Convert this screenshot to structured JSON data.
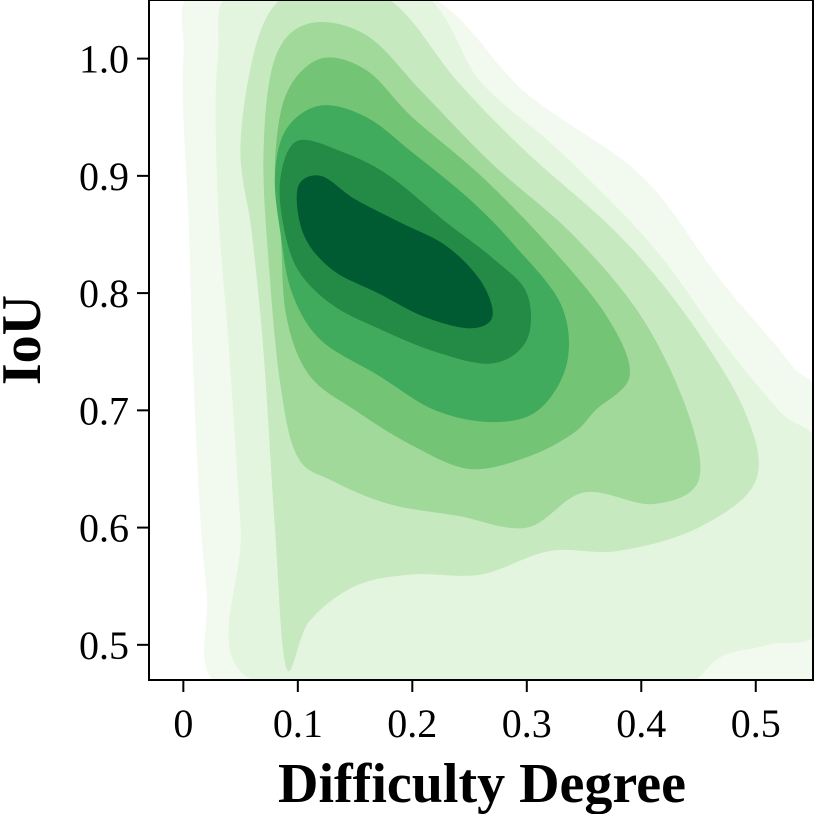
{
  "chart_data": {
    "type": "kde-contour",
    "xlabel": "Difficulty Degree",
    "ylabel": "IoU",
    "xlim": [
      -0.03,
      0.55
    ],
    "ylim": [
      0.47,
      1.05
    ],
    "x_ticks": [
      "0",
      "0.1",
      "0.2",
      "0.3",
      "0.4",
      "0.5"
    ],
    "x_tick_values": [
      0,
      0.1,
      0.2,
      0.3,
      0.4,
      0.5
    ],
    "y_ticks": [
      "0.5",
      "0.6",
      "0.7",
      "0.8",
      "0.9",
      "1.0"
    ],
    "y_tick_values": [
      0.5,
      0.6,
      0.7,
      0.8,
      0.9,
      1.0
    ],
    "colormap": "Greens",
    "grid": false,
    "legend": "none",
    "levels": [
      {
        "fill": "#f2faf0",
        "points": [
          [
            0.0,
            1.0
          ],
          [
            0.02,
            1.06
          ],
          [
            0.2,
            1.06
          ],
          [
            0.3,
            0.97
          ],
          [
            0.4,
            0.9
          ],
          [
            0.47,
            0.81
          ],
          [
            0.53,
            0.74
          ],
          [
            0.56,
            0.69
          ],
          [
            0.56,
            0.46
          ],
          [
            0.38,
            0.46
          ],
          [
            0.32,
            0.47
          ],
          [
            0.24,
            0.46
          ],
          [
            0.04,
            0.46
          ],
          [
            0.02,
            0.55
          ],
          [
            0.01,
            0.7
          ],
          [
            0.005,
            0.85
          ]
        ]
      },
      {
        "fill": "#e4f5df",
        "points": [
          [
            0.03,
            1.0
          ],
          [
            0.05,
            1.06
          ],
          [
            0.2,
            1.06
          ],
          [
            0.26,
            0.98
          ],
          [
            0.33,
            0.92
          ],
          [
            0.41,
            0.84
          ],
          [
            0.47,
            0.76
          ],
          [
            0.52,
            0.7
          ],
          [
            0.56,
            0.66
          ],
          [
            0.56,
            0.52
          ],
          [
            0.51,
            0.5
          ],
          [
            0.47,
            0.49
          ],
          [
            0.43,
            0.46
          ],
          [
            0.35,
            0.46
          ],
          [
            0.3,
            0.47
          ],
          [
            0.06,
            0.47
          ],
          [
            0.05,
            0.6
          ],
          [
            0.04,
            0.75
          ],
          [
            0.03,
            0.88
          ]
        ]
      },
      {
        "fill": "#c7e9c0",
        "points": [
          [
            0.05,
            0.93
          ],
          [
            0.07,
            1.03
          ],
          [
            0.11,
            1.06
          ],
          [
            0.18,
            1.05
          ],
          [
            0.24,
            0.98
          ],
          [
            0.3,
            0.92
          ],
          [
            0.38,
            0.85
          ],
          [
            0.44,
            0.78
          ],
          [
            0.49,
            0.7
          ],
          [
            0.5,
            0.64
          ],
          [
            0.45,
            0.6
          ],
          [
            0.38,
            0.58
          ],
          [
            0.32,
            0.58
          ],
          [
            0.26,
            0.56
          ],
          [
            0.2,
            0.56
          ],
          [
            0.15,
            0.55
          ],
          [
            0.11,
            0.52
          ],
          [
            0.09,
            0.48
          ],
          [
            0.08,
            0.6
          ],
          [
            0.07,
            0.75
          ],
          [
            0.06,
            0.85
          ]
        ]
      },
      {
        "fill": "#a1d99b",
        "points": [
          [
            0.07,
            0.92
          ],
          [
            0.08,
            1.0
          ],
          [
            0.11,
            1.03
          ],
          [
            0.16,
            1.02
          ],
          [
            0.21,
            0.97
          ],
          [
            0.27,
            0.91
          ],
          [
            0.34,
            0.85
          ],
          [
            0.4,
            0.78
          ],
          [
            0.44,
            0.7
          ],
          [
            0.45,
            0.64
          ],
          [
            0.41,
            0.62
          ],
          [
            0.35,
            0.63
          ],
          [
            0.3,
            0.6
          ],
          [
            0.24,
            0.61
          ],
          [
            0.18,
            0.62
          ],
          [
            0.13,
            0.64
          ],
          [
            0.1,
            0.66
          ],
          [
            0.085,
            0.72
          ],
          [
            0.075,
            0.82
          ]
        ]
      },
      {
        "fill": "#74c476",
        "points": [
          [
            0.08,
            0.91
          ],
          [
            0.09,
            0.97
          ],
          [
            0.12,
            1.0
          ],
          [
            0.16,
            0.99
          ],
          [
            0.2,
            0.95
          ],
          [
            0.26,
            0.9
          ],
          [
            0.32,
            0.84
          ],
          [
            0.37,
            0.78
          ],
          [
            0.39,
            0.73
          ],
          [
            0.36,
            0.7
          ],
          [
            0.34,
            0.68
          ],
          [
            0.3,
            0.66
          ],
          [
            0.25,
            0.65
          ],
          [
            0.2,
            0.67
          ],
          [
            0.15,
            0.7
          ],
          [
            0.11,
            0.73
          ],
          [
            0.09,
            0.78
          ],
          [
            0.085,
            0.85
          ]
        ]
      },
      {
        "fill": "#41ab5d",
        "points": [
          [
            0.08,
            0.9
          ],
          [
            0.09,
            0.94
          ],
          [
            0.12,
            0.96
          ],
          [
            0.16,
            0.95
          ],
          [
            0.2,
            0.92
          ],
          [
            0.25,
            0.88
          ],
          [
            0.29,
            0.84
          ],
          [
            0.33,
            0.79
          ],
          [
            0.335,
            0.74
          ],
          [
            0.31,
            0.7
          ],
          [
            0.27,
            0.69
          ],
          [
            0.22,
            0.7
          ],
          [
            0.17,
            0.73
          ],
          [
            0.12,
            0.76
          ],
          [
            0.095,
            0.8
          ],
          [
            0.085,
            0.85
          ]
        ]
      },
      {
        "fill": "#238b45",
        "points": [
          [
            0.085,
            0.9
          ],
          [
            0.1,
            0.93
          ],
          [
            0.14,
            0.92
          ],
          [
            0.18,
            0.9
          ],
          [
            0.23,
            0.86
          ],
          [
            0.27,
            0.83
          ],
          [
            0.3,
            0.8
          ],
          [
            0.3,
            0.76
          ],
          [
            0.27,
            0.74
          ],
          [
            0.22,
            0.75
          ],
          [
            0.17,
            0.77
          ],
          [
            0.13,
            0.79
          ],
          [
            0.1,
            0.82
          ],
          [
            0.087,
            0.86
          ]
        ]
      },
      {
        "fill": "#005a32",
        "points": [
          [
            0.1,
            0.89
          ],
          [
            0.12,
            0.9
          ],
          [
            0.15,
            0.88
          ],
          [
            0.19,
            0.86
          ],
          [
            0.23,
            0.84
          ],
          [
            0.26,
            0.81
          ],
          [
            0.27,
            0.78
          ],
          [
            0.25,
            0.77
          ],
          [
            0.21,
            0.78
          ],
          [
            0.17,
            0.8
          ],
          [
            0.13,
            0.82
          ],
          [
            0.105,
            0.85
          ]
        ]
      }
    ]
  }
}
